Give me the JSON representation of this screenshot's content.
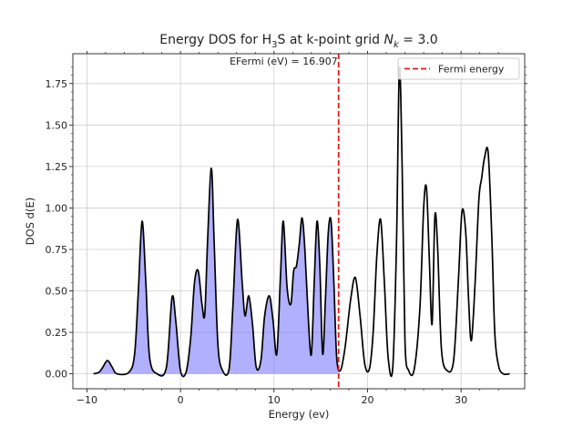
{
  "chart_data": {
    "type": "line",
    "title": {
      "prefix": "Energy DOS for H",
      "sub": "3",
      "mid": "S at k-point grid ",
      "math_var": "N",
      "math_sub": "k",
      "suffix": " = 3.0"
    },
    "xlabel": "Energy (ev)",
    "ylabel": "DOS d(E)",
    "xlim": [
      -11.5,
      36.8
    ],
    "ylim": [
      -0.09,
      1.93
    ],
    "xticks": [
      -10,
      0,
      10,
      20,
      30
    ],
    "xtick_labels": [
      "−10",
      "0",
      "10",
      "20",
      "30"
    ],
    "yticks": [
      0.0,
      0.25,
      0.5,
      0.75,
      1.0,
      1.25,
      1.5,
      1.75
    ],
    "ytick_labels": [
      "0.00",
      "0.25",
      "0.50",
      "0.75",
      "1.00",
      "1.25",
      "1.50",
      "1.75"
    ],
    "grid": true,
    "legend_placement": "top-right",
    "fermi_energy": 16.907,
    "fill_below_fermi": true,
    "annotation": "EFermi (eV) = 16.907",
    "series": [
      {
        "name": "",
        "color": "#000000",
        "x": [
          -9.3,
          -8.7,
          -8.3,
          -7.8,
          -7.3,
          -6.8,
          -5.5,
          -4.9,
          -4.5,
          -4.1,
          -3.7,
          -3.3,
          -2.5,
          -1.5,
          -0.9,
          -0.5,
          0.0,
          0.6,
          1.1,
          1.5,
          1.9,
          2.3,
          2.6,
          2.9,
          3.3,
          3.6,
          4.0,
          4.5,
          5.2,
          5.6,
          6.1,
          6.6,
          6.9,
          7.3,
          7.7,
          8.1,
          8.6,
          9.0,
          9.5,
          9.9,
          10.3,
          10.7,
          11.0,
          11.4,
          11.8,
          12.1,
          12.4,
          12.7,
          13.0,
          13.3,
          13.7,
          14.0,
          14.3,
          14.6,
          14.9,
          15.2,
          15.5,
          15.8,
          16.1,
          16.4,
          16.7,
          17.1,
          17.6,
          18.2,
          18.7,
          19.2,
          19.7,
          20.2,
          20.6,
          21.0,
          21.4,
          21.8,
          22.2,
          22.7,
          23.1,
          23.4,
          23.7,
          24.0,
          24.4,
          25.0,
          25.6,
          26.0,
          26.3,
          26.6,
          26.9,
          27.2,
          27.5,
          27.9,
          28.5,
          29.2,
          29.7,
          30.1,
          30.5,
          30.8,
          31.1,
          31.5,
          31.9,
          32.2,
          32.5,
          32.9,
          33.3,
          33.6,
          34.0,
          34.5,
          35.2
        ],
        "y": [
          0.0,
          0.01,
          0.04,
          0.08,
          0.04,
          0.0,
          0.01,
          0.12,
          0.5,
          0.92,
          0.55,
          0.1,
          0.0,
          0.04,
          0.46,
          0.32,
          0.02,
          0.01,
          0.22,
          0.55,
          0.62,
          0.42,
          0.36,
          0.8,
          1.24,
          0.8,
          0.18,
          0.02,
          0.03,
          0.4,
          0.93,
          0.55,
          0.35,
          0.47,
          0.3,
          0.04,
          0.08,
          0.35,
          0.47,
          0.32,
          0.12,
          0.6,
          0.92,
          0.52,
          0.42,
          0.62,
          0.65,
          0.78,
          0.94,
          0.75,
          0.3,
          0.12,
          0.55,
          0.92,
          0.65,
          0.12,
          0.45,
          0.85,
          0.92,
          0.55,
          0.1,
          0.02,
          0.16,
          0.45,
          0.58,
          0.35,
          0.06,
          0.03,
          0.25,
          0.72,
          0.93,
          0.55,
          0.1,
          0.04,
          0.8,
          1.84,
          1.25,
          0.2,
          0.02,
          0.03,
          0.4,
          1.0,
          1.12,
          0.7,
          0.3,
          0.95,
          0.75,
          0.15,
          0.02,
          0.08,
          0.55,
          0.98,
          0.85,
          0.45,
          0.2,
          0.55,
          1.05,
          1.18,
          1.3,
          1.33,
          0.8,
          0.25,
          0.05,
          0.0,
          0.0
        ]
      },
      {
        "name": "Fermi energy",
        "color": "#e41a1c",
        "style": "dashed",
        "x_constant": 16.907
      }
    ]
  },
  "colors": {
    "dos_line": "#000000",
    "fill": "#7b7bff",
    "fermi_line": "#e41a1c",
    "grid": "#cfcfcf",
    "axis": "#222222"
  }
}
